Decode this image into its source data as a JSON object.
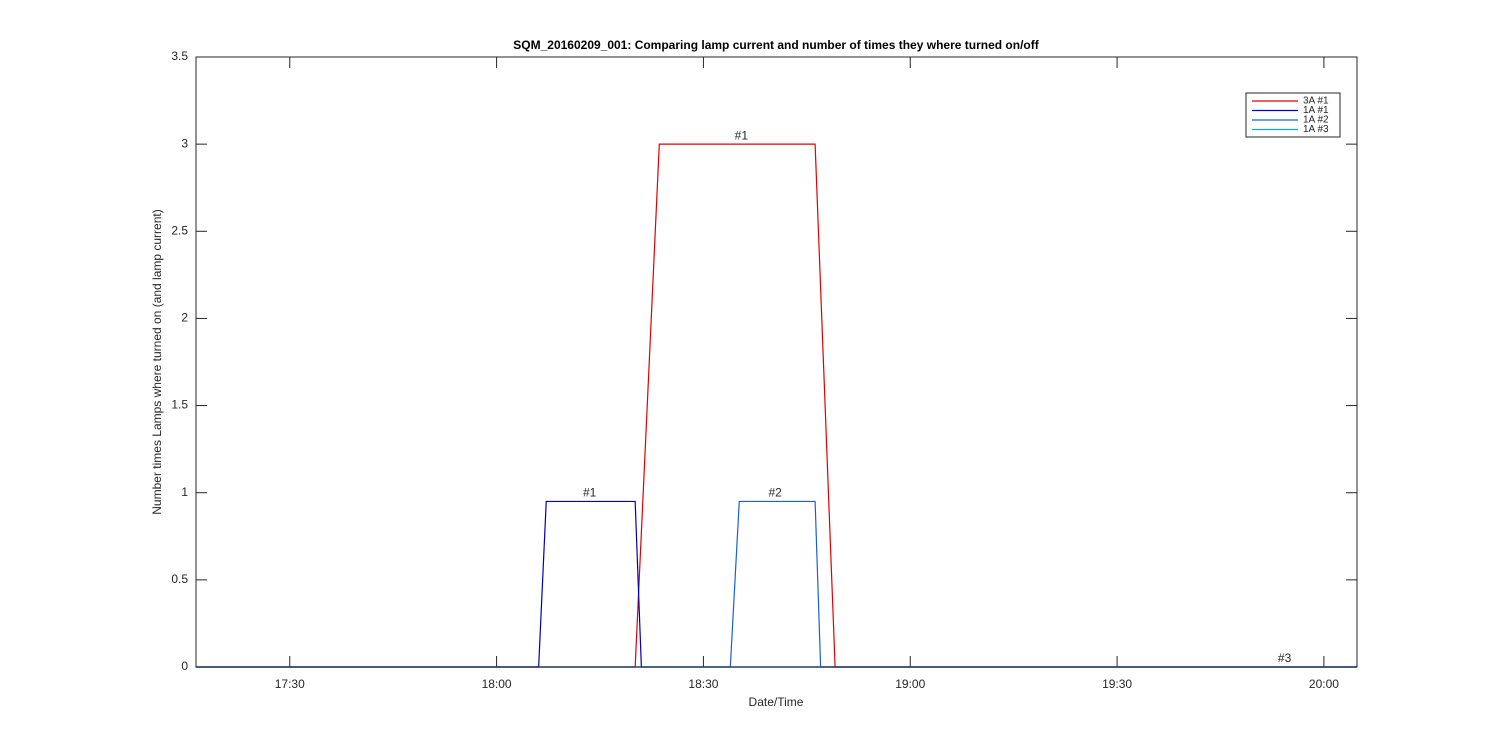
{
  "chart_data": {
    "type": "line",
    "title": "SQM_20160209_001: Comparing lamp current and number of times they where turned on/off",
    "xlabel": "Date/Time",
    "ylabel": "Number times Lamps where turned on (and lamp current)",
    "xlim": [
      1036.4,
      1204.8
    ],
    "xticks": [
      {
        "value": 1050,
        "label": "17:30"
      },
      {
        "value": 1080,
        "label": "18:00"
      },
      {
        "value": 1110,
        "label": "18:30"
      },
      {
        "value": 1140,
        "label": "19:00"
      },
      {
        "value": 1170,
        "label": "19:30"
      },
      {
        "value": 1200,
        "label": "20:00"
      }
    ],
    "ylim": [
      0,
      3.5
    ],
    "yticks": [
      0,
      0.5,
      1,
      1.5,
      2,
      2.5,
      3,
      3.5
    ],
    "legend": "upper right",
    "series": [
      {
        "name": "3A #1",
        "color": "#e00000",
        "x": [
          1036.4,
          1100.1,
          1103.6,
          1126.2,
          1129.1,
          1204.8
        ],
        "values": [
          0,
          0,
          3,
          3,
          0,
          0
        ]
      },
      {
        "name": "1A #1",
        "color": "#0000b4",
        "x": [
          1036.4,
          1086.1,
          1087.2,
          1100.1,
          1101,
          1204.8
        ],
        "values": [
          0,
          0,
          0.95,
          0.95,
          0,
          0
        ]
      },
      {
        "name": "1A #2",
        "color": "#1a5fd6",
        "x": [
          1036.4,
          1113.9,
          1115.2,
          1126.2,
          1127,
          1204.8
        ],
        "values": [
          0,
          0,
          0.95,
          0.95,
          0,
          0
        ]
      },
      {
        "name": "1A #3",
        "color": "#12a8b8",
        "x": [
          1036.4,
          1204.8
        ],
        "values": [
          0,
          0
        ]
      }
    ],
    "annotations": [
      {
        "text": "#1",
        "x": 1093.5,
        "y": 0.95
      },
      {
        "text": "#1",
        "x": 1115.5,
        "y": 3
      },
      {
        "text": "#2",
        "x": 1120.4,
        "y": 0.95
      },
      {
        "text": "#3",
        "x": 1194.3,
        "y": 0
      }
    ]
  }
}
